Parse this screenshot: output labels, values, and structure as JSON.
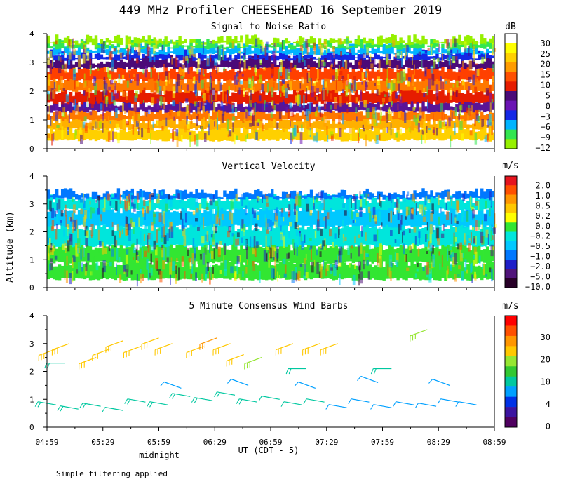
{
  "title": "449 MHz Profiler CHEESEHEAD 16 September 2019",
  "ylabel": "Altitude (km)",
  "footnote": "Simple filtering applied",
  "chart_data": [
    {
      "type": "heatmap",
      "title": "Signal to Noise Ratio",
      "units": "dB",
      "ylim": [
        0,
        4
      ],
      "yticks": [
        "0",
        "1",
        "2",
        "3",
        "4"
      ],
      "colorbar": {
        "labels": [
          "30",
          "25",
          "20",
          "15",
          "10",
          "5",
          "0",
          "−3",
          "−6",
          "−9",
          "−12"
        ],
        "colors": [
          "#ffffff",
          "#ffff00",
          "#ffd000",
          "#ff9c00",
          "#ff5000",
          "#e61c00",
          "#4b0a78",
          "#6b14b4",
          "#1428e6",
          "#00b4ff",
          "#32e650",
          "#96f000"
        ]
      },
      "profile": [
        {
          "base": 0.3,
          "top": 0.7,
          "color": "#ffd000"
        },
        {
          "base": 0.7,
          "top": 1.0,
          "color": "#ffb000"
        },
        {
          "base": 1.0,
          "top": 1.3,
          "color": "#ff7800"
        },
        {
          "base": 1.3,
          "top": 1.6,
          "color": "#5a1496"
        },
        {
          "base": 1.6,
          "top": 2.0,
          "color": "#e61c00"
        },
        {
          "base": 2.0,
          "top": 2.4,
          "color": "#ff7800"
        },
        {
          "base": 2.4,
          "top": 2.8,
          "color": "#ff4000"
        },
        {
          "base": 2.8,
          "top": 3.1,
          "color": "#4b0a78"
        },
        {
          "base": 3.1,
          "top": 3.3,
          "color": "#1428e6"
        },
        {
          "base": 3.3,
          "top": 3.5,
          "color": "#00b4ff"
        },
        {
          "base": 3.5,
          "top": 3.65,
          "color": "#32e650"
        },
        {
          "base": 3.65,
          "top": 3.8,
          "color": "#96f000"
        }
      ]
    },
    {
      "type": "heatmap",
      "title": "Vertical Velocity",
      "units": "m/s",
      "ylim": [
        0,
        4
      ],
      "yticks": [
        "0",
        "1",
        "2",
        "3",
        "4"
      ],
      "colorbar": {
        "labels": [
          "2.0",
          "1.0",
          "0.5",
          "0.2",
          "0.0",
          "−0.2",
          "−0.5",
          "−1.0",
          "−2.0",
          "−5.0",
          "−10.0"
        ],
        "colors": [
          "#e6141e",
          "#ff5000",
          "#ff9600",
          "#ffc800",
          "#ffff00",
          "#32e632",
          "#00e6dc",
          "#00c8ff",
          "#0078ff",
          "#1e1ec8",
          "#50147a",
          "#280028"
        ]
      },
      "profile": [
        {
          "base": 0.3,
          "top": 0.9,
          "color": "#32e632"
        },
        {
          "base": 0.9,
          "top": 1.5,
          "color": "#32e632"
        },
        {
          "base": 1.5,
          "top": 2.2,
          "color": "#00e6dc"
        },
        {
          "base": 2.2,
          "top": 2.8,
          "color": "#00c8ff"
        },
        {
          "base": 2.8,
          "top": 3.2,
          "color": "#00e6dc"
        },
        {
          "base": 3.2,
          "top": 3.4,
          "color": "#0078ff"
        }
      ]
    },
    {
      "type": "wind-barbs",
      "title": "5 Minute Consensus Wind Barbs",
      "units": "m/s",
      "ylim": [
        0,
        4
      ],
      "yticks": [
        "0",
        "1",
        "2",
        "3",
        "4"
      ],
      "colorbar": {
        "labels": [
          "30",
          "20",
          "10",
          "4",
          "0"
        ],
        "colors": [
          "#ff0000",
          "#ff5000",
          "#ff9600",
          "#ffc800",
          "#96e632",
          "#32c832",
          "#00c8a0",
          "#00a0ff",
          "#0032e6",
          "#3c14a0",
          "#500060"
        ]
      },
      "xticks": [
        "04:59",
        "05:29",
        "05:59",
        "06:29",
        "06:59",
        "07:29",
        "07:59",
        "08:29",
        "08:59"
      ],
      "xlabel": "UT  (CDT - 5)",
      "xnote": "midnight",
      "barbs": [
        {
          "t": 0.02,
          "alt": 2.8,
          "speed": 22,
          "dir": 250
        },
        {
          "t": 0.05,
          "alt": 3.0,
          "speed": 22,
          "dir": 250
        },
        {
          "t": 0.11,
          "alt": 2.5,
          "speed": 20,
          "dir": 250
        },
        {
          "t": 0.14,
          "alt": 2.8,
          "speed": 21,
          "dir": 250
        },
        {
          "t": 0.17,
          "alt": 3.1,
          "speed": 22,
          "dir": 250
        },
        {
          "t": 0.21,
          "alt": 2.9,
          "speed": 21,
          "dir": 250
        },
        {
          "t": 0.25,
          "alt": 3.2,
          "speed": 22,
          "dir": 250
        },
        {
          "t": 0.28,
          "alt": 3.0,
          "speed": 21,
          "dir": 250
        },
        {
          "t": 0.35,
          "alt": 2.9,
          "speed": 22,
          "dir": 250
        },
        {
          "t": 0.38,
          "alt": 3.2,
          "speed": 23,
          "dir": 250
        },
        {
          "t": 0.41,
          "alt": 3.0,
          "speed": 22,
          "dir": 250
        },
        {
          "t": 0.44,
          "alt": 2.6,
          "speed": 20,
          "dir": 250
        },
        {
          "t": 0.48,
          "alt": 2.5,
          "speed": 18,
          "dir": 250
        },
        {
          "t": 0.55,
          "alt": 3.0,
          "speed": 21,
          "dir": 250
        },
        {
          "t": 0.61,
          "alt": 3.0,
          "speed": 21,
          "dir": 250
        },
        {
          "t": 0.65,
          "alt": 3.0,
          "speed": 20,
          "dir": 250
        },
        {
          "t": 0.85,
          "alt": 3.5,
          "speed": 19,
          "dir": 250
        },
        {
          "t": 0.04,
          "alt": 2.3,
          "speed": 12,
          "dir": 270
        },
        {
          "t": 0.58,
          "alt": 2.1,
          "speed": 12,
          "dir": 270
        },
        {
          "t": 0.77,
          "alt": 2.1,
          "speed": 12,
          "dir": 270
        },
        {
          "t": 0.02,
          "alt": 0.8,
          "speed": 12,
          "dir": 280
        },
        {
          "t": 0.07,
          "alt": 0.65,
          "speed": 12,
          "dir": 280
        },
        {
          "t": 0.12,
          "alt": 0.75,
          "speed": 11,
          "dir": 280
        },
        {
          "t": 0.17,
          "alt": 0.6,
          "speed": 10,
          "dir": 280
        },
        {
          "t": 0.22,
          "alt": 0.9,
          "speed": 12,
          "dir": 280
        },
        {
          "t": 0.27,
          "alt": 0.8,
          "speed": 11,
          "dir": 280
        },
        {
          "t": 0.32,
          "alt": 1.1,
          "speed": 12,
          "dir": 280
        },
        {
          "t": 0.37,
          "alt": 0.95,
          "speed": 11,
          "dir": 280
        },
        {
          "t": 0.42,
          "alt": 1.15,
          "speed": 12,
          "dir": 280
        },
        {
          "t": 0.47,
          "alt": 0.9,
          "speed": 11,
          "dir": 280
        },
        {
          "t": 0.52,
          "alt": 1.0,
          "speed": 10,
          "dir": 280
        },
        {
          "t": 0.57,
          "alt": 0.8,
          "speed": 10,
          "dir": 280
        },
        {
          "t": 0.62,
          "alt": 0.9,
          "speed": 10,
          "dir": 280
        },
        {
          "t": 0.67,
          "alt": 0.7,
          "speed": 9,
          "dir": 280
        },
        {
          "t": 0.72,
          "alt": 0.9,
          "speed": 9,
          "dir": 280
        },
        {
          "t": 0.77,
          "alt": 0.7,
          "speed": 8,
          "dir": 280
        },
        {
          "t": 0.82,
          "alt": 0.8,
          "speed": 8,
          "dir": 280
        },
        {
          "t": 0.87,
          "alt": 0.75,
          "speed": 9,
          "dir": 280
        },
        {
          "t": 0.92,
          "alt": 0.9,
          "speed": 9,
          "dir": 280
        },
        {
          "t": 0.96,
          "alt": 0.8,
          "speed": 8,
          "dir": 280
        },
        {
          "t": 0.3,
          "alt": 1.4,
          "speed": 9,
          "dir": 290
        },
        {
          "t": 0.45,
          "alt": 1.5,
          "speed": 8,
          "dir": 290
        },
        {
          "t": 0.6,
          "alt": 1.4,
          "speed": 8,
          "dir": 290
        },
        {
          "t": 0.74,
          "alt": 1.6,
          "speed": 9,
          "dir": 290
        },
        {
          "t": 0.9,
          "alt": 1.5,
          "speed": 8,
          "dir": 290
        }
      ]
    }
  ]
}
